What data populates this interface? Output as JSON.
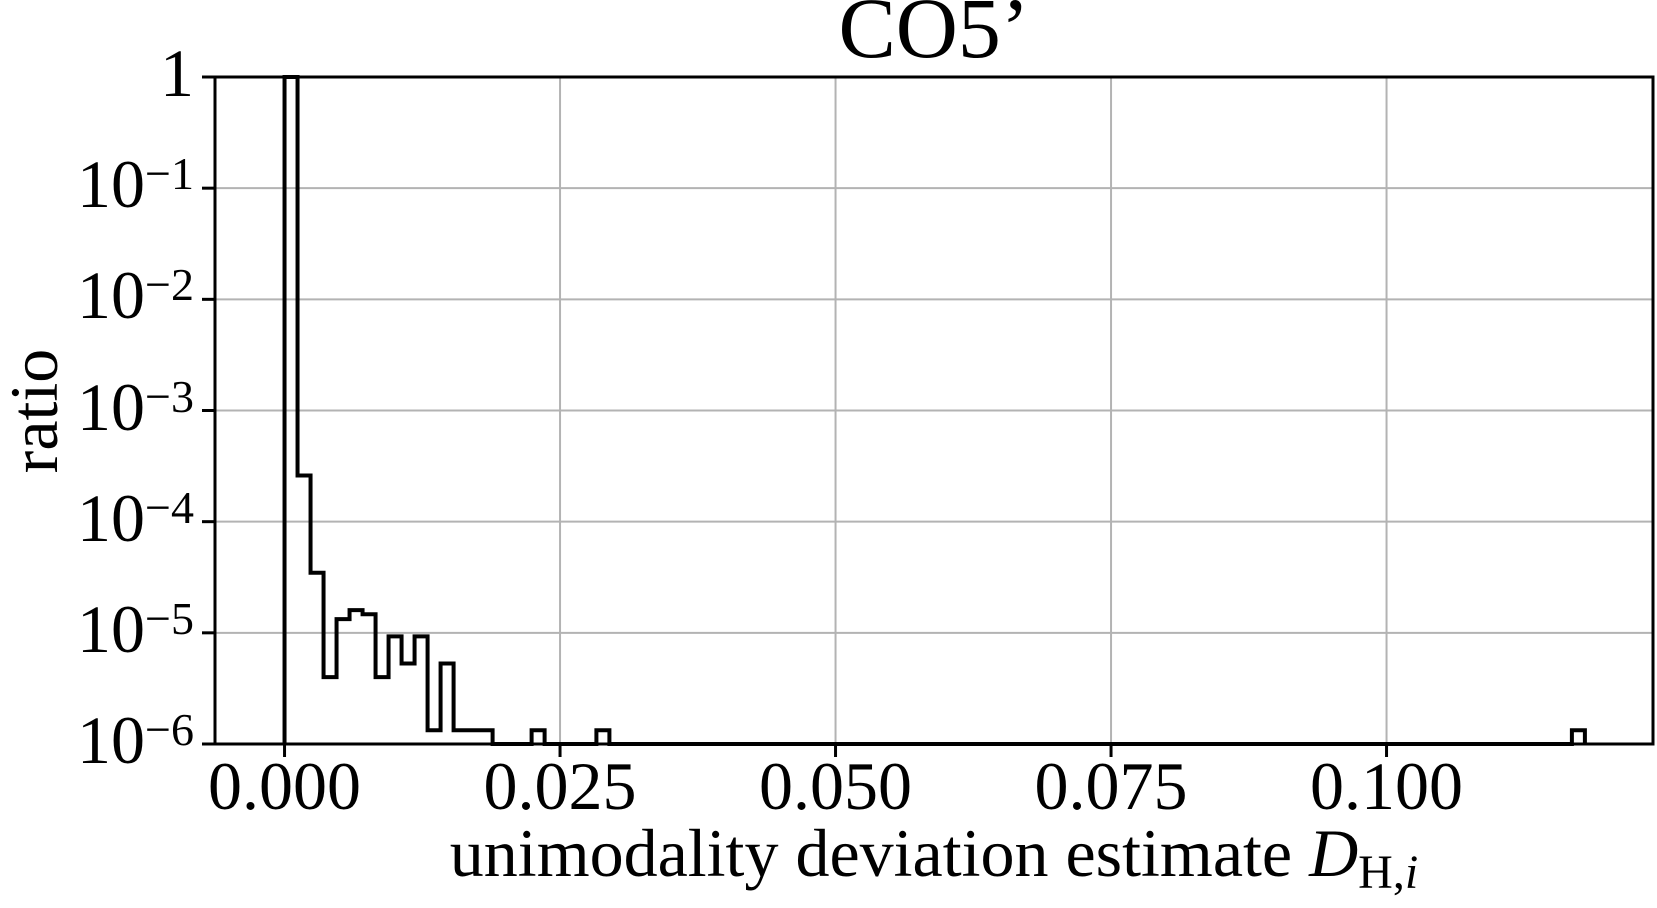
{
  "title": "CO5’",
  "ylabel": "ratio",
  "xlabel": {
    "text": "unimodality deviation estimate ",
    "var": "D",
    "sub_roman": "H,",
    "sub_italic": "i"
  },
  "chart_data": {
    "type": "bar",
    "subtype": "step-histogram",
    "title": "CO5’",
    "xlabel": "unimodality deviation estimate D_H,i",
    "ylabel": "ratio",
    "yscale": "log",
    "xlim": [
      -0.00631,
      0.12418
    ],
    "ylim": [
      1e-06,
      1.0
    ],
    "grid": true,
    "grid_color": "#b3b3b3",
    "line_color": "#000000",
    "background_color": "#ffffff",
    "n_bins": 100,
    "bin_width": 0.00118,
    "bin_range": [
      0.0,
      0.118
    ],
    "nonzero_bins": [
      {
        "x0": 0.0,
        "x1": 0.00118,
        "ratio": 0.9996
      },
      {
        "x0": 0.00118,
        "x1": 0.00236,
        "ratio": 0.00026
      },
      {
        "x0": 0.00236,
        "x1": 0.00354,
        "ratio": 3.47e-05
      },
      {
        "x0": 0.00354,
        "x1": 0.00472,
        "ratio": 4e-06
      },
      {
        "x0": 0.00472,
        "x1": 0.0059,
        "ratio": 1.33e-05
      },
      {
        "x0": 0.0059,
        "x1": 0.00708,
        "ratio": 1.6e-05
      },
      {
        "x0": 0.00708,
        "x1": 0.00826,
        "ratio": 1.47e-05
      },
      {
        "x0": 0.00826,
        "x1": 0.00944,
        "ratio": 4e-06
      },
      {
        "x0": 0.00944,
        "x1": 0.01062,
        "ratio": 9.3e-06
      },
      {
        "x0": 0.01062,
        "x1": 0.0118,
        "ratio": 5.3e-06
      },
      {
        "x0": 0.0118,
        "x1": 0.01298,
        "ratio": 9.3e-06
      },
      {
        "x0": 0.01298,
        "x1": 0.01416,
        "ratio": 1.33e-06
      },
      {
        "x0": 0.01416,
        "x1": 0.01534,
        "ratio": 5.3e-06
      },
      {
        "x0": 0.01534,
        "x1": 0.01888,
        "ratio": 1.33e-06
      },
      {
        "x0": 0.02242,
        "x1": 0.0236,
        "ratio": 1.33e-06
      },
      {
        "x0": 0.0283,
        "x1": 0.02948,
        "ratio": 1.33e-06
      },
      {
        "x0": 0.11682,
        "x1": 0.118,
        "ratio": 1.33e-06
      }
    ],
    "xticks": [
      {
        "value": 0.0,
        "label": "0.000"
      },
      {
        "value": 0.025,
        "label": "0.025"
      },
      {
        "value": 0.05,
        "label": "0.050"
      },
      {
        "value": 0.075,
        "label": "0.075"
      },
      {
        "value": 0.1,
        "label": "0.100"
      }
    ],
    "yticks": [
      {
        "value": 1,
        "label": "1"
      },
      {
        "value": 0.1,
        "base": "10",
        "exp": "−1"
      },
      {
        "value": 0.01,
        "base": "10",
        "exp": "−2"
      },
      {
        "value": 0.001,
        "base": "10",
        "exp": "−3"
      },
      {
        "value": 0.0001,
        "base": "10",
        "exp": "−4"
      },
      {
        "value": 1e-05,
        "base": "10",
        "exp": "−5"
      },
      {
        "value": 1e-06,
        "base": "10",
        "exp": "−6"
      }
    ]
  }
}
